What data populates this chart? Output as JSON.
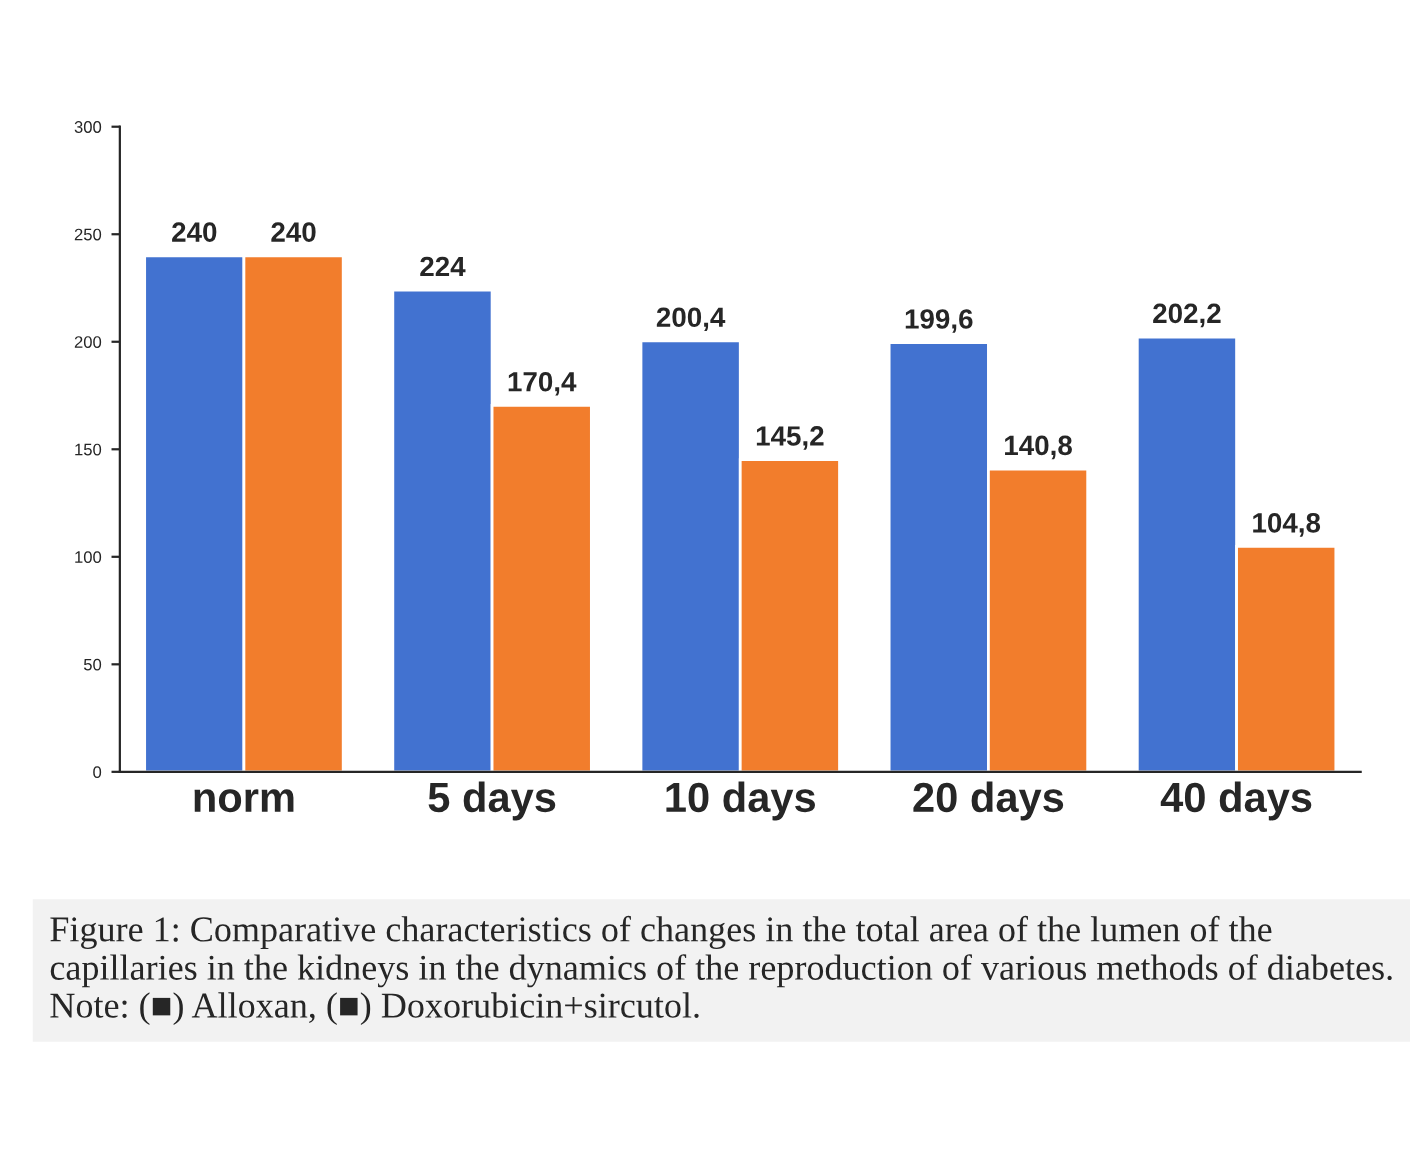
{
  "chart_data": {
    "type": "bar",
    "categories": [
      "norm",
      "5 days",
      "10 days",
      "20 days",
      "40 days"
    ],
    "series": [
      {
        "color": "#4272d0",
        "values": [
          240,
          224,
          200.4,
          199.6,
          202.2
        ],
        "value_labels": [
          "240",
          "224",
          "200,4",
          "199,6",
          "202,2"
        ]
      },
      {
        "color": "#f27d2c",
        "values": [
          240,
          170.4,
          145.2,
          140.8,
          104.8
        ],
        "value_labels": [
          "240",
          "170,4",
          "145,2",
          "140,8",
          "104,8"
        ]
      }
    ],
    "ylim": [
      0,
      300
    ],
    "yticks": [
      0,
      50,
      100,
      150,
      200,
      250,
      300
    ],
    "grid": false,
    "legend": false,
    "annotations": [
      "Figure 1: Comparative characteristics of changes in the total area of the lumen of the capillaries in the kidneys in the dynamics of the reproduction of various methods of diabetes. Note: (■) Alloxan, (■) Doxorubicin+sircutol."
    ]
  }
}
